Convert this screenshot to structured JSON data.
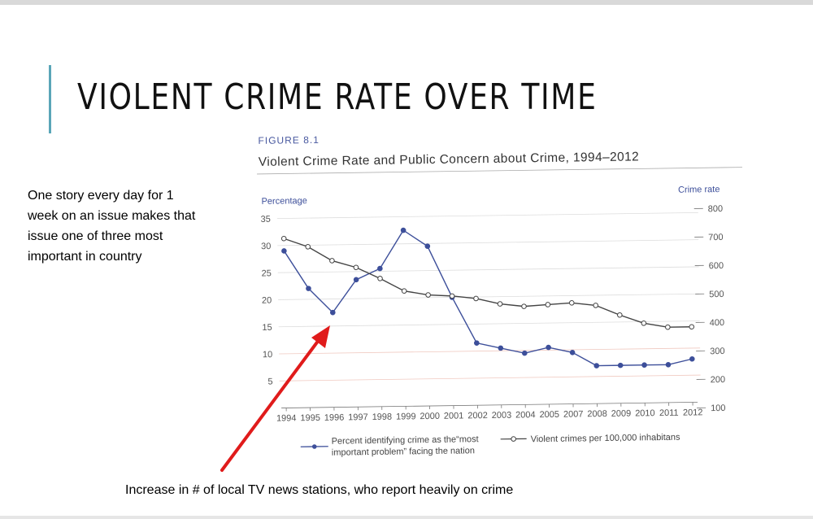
{
  "slide": {
    "title": "VIOLENT CRIME RATE OVER TIME",
    "side_text": "One story every day for 1 week on an issue makes that issue one of three most important in country",
    "bottom_note": "Increase in # of local TV news stations, who report heavily on crime"
  },
  "chart_data": {
    "type": "line",
    "figure_label": "FIGURE 8.1",
    "title": "Violent Crime Rate and Public Concern about Crime, 1994–2012",
    "ylabel": "Percentage",
    "y2label": "Crime rate",
    "categories": [
      "1994",
      "1995",
      "1996",
      "1997",
      "1998",
      "1999",
      "2000",
      "2001",
      "2002",
      "2003",
      "2004",
      "2005",
      "2007",
      "2008",
      "2009",
      "2010",
      "2011",
      "2012"
    ],
    "ylim": [
      0,
      35
    ],
    "y_ticks": [
      5,
      10,
      15,
      20,
      25,
      30,
      35
    ],
    "y2lim": [
      100,
      800
    ],
    "y2_ticks": [
      100,
      200,
      300,
      400,
      500,
      600,
      700,
      800
    ],
    "grid": true,
    "legend_position": "bottom",
    "series": [
      {
        "name": "Percent identifying crime as the“most important problem” facing the nation",
        "legend_line1": "Percent identifying crime as the“most",
        "legend_line2": "important problem” facing the nation",
        "axis": "left",
        "color": "#3d4f9a",
        "marker": "filled",
        "values": [
          29,
          22,
          17.5,
          23.5,
          25.5,
          32.5,
          29.5,
          20,
          11.5,
          10.5,
          9.5,
          10.5,
          9.5,
          7,
          7,
          7,
          7,
          8
        ]
      },
      {
        "name": "Violent crimes per 100,000 inhabitans",
        "axis": "right",
        "color": "#444444",
        "marker": "open",
        "values": [
          715,
          685,
          635,
          610,
          570,
          525,
          510,
          505,
          495,
          475,
          465,
          470,
          475,
          465,
          430,
          400,
          385,
          385
        ]
      }
    ]
  },
  "colors": {
    "accent_bar": "#5aa6b8",
    "arrow": "#e01b1b",
    "figure_label": "#4a5aa0"
  }
}
